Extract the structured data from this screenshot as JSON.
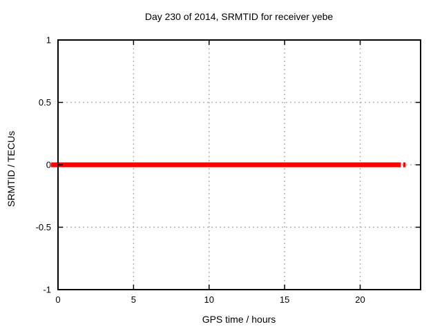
{
  "chart_data": {
    "type": "line",
    "title": "Day 230 of 2014, SRMTID for receiver yebe",
    "xlabel": "GPS time / hours",
    "ylabel": "SRMTID / TECUs",
    "xlim": [
      0,
      24
    ],
    "ylim": [
      -1,
      1
    ],
    "xticks": [
      0,
      5,
      10,
      15,
      20
    ],
    "xtick_labels": [
      "0",
      "5",
      "10",
      "15",
      "20"
    ],
    "yticks": [
      -1,
      -0.5,
      0,
      0.5,
      1
    ],
    "ytick_labels": [
      "-1",
      "-0.5",
      "0",
      "0.5",
      "1"
    ],
    "grid": true,
    "grid_style": "dotted",
    "legend": "none",
    "series": [
      {
        "name": "SRMTID",
        "color": "#ff0000",
        "linewidth": 7,
        "segments": [
          {
            "x": [
              0,
              22.7
            ],
            "y": [
              0,
              0
            ]
          },
          {
            "x": [
              22.85,
              23.0
            ],
            "y": [
              0,
              0
            ]
          }
        ]
      }
    ],
    "colors": {
      "background": "#ffffff",
      "axis": "#000000",
      "grid": "#ababab",
      "text": "#000000",
      "line": "#ff0000"
    }
  }
}
